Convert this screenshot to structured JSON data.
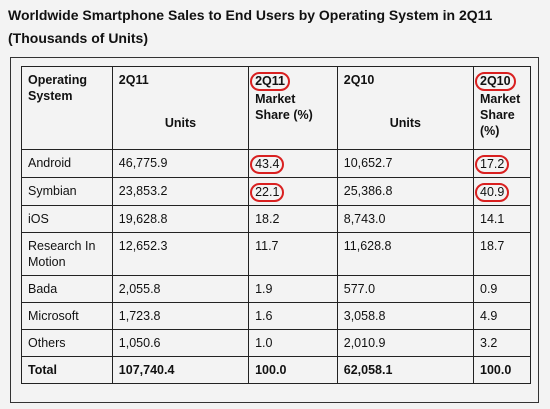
{
  "title_line1": "Worldwide Smartphone Sales to End Users by Operating System in 2Q11",
  "title_line2": "(Thousands of Units)",
  "header": {
    "col1": "Operating System",
    "col2_top": "2Q11",
    "col2_units": "Units",
    "col3_top": "2Q11",
    "col3_sub": "Market Share (%)",
    "col4_top": "2Q10",
    "col4_units": "Units",
    "col5_top": "2Q10",
    "col5_sub": "Market Share (%)"
  },
  "rows": [
    {
      "os": "Android",
      "units_2q11": "46,775.9",
      "share_2q11": "43.4",
      "units_2q10": "10,652.7",
      "share_2q10": "17.2"
    },
    {
      "os": "Symbian",
      "units_2q11": "23,853.2",
      "share_2q11": "22.1",
      "units_2q10": "25,386.8",
      "share_2q10": "40.9"
    },
    {
      "os": "iOS",
      "units_2q11": "19,628.8",
      "share_2q11": "18.2",
      "units_2q10": "8,743.0",
      "share_2q10": "14.1"
    },
    {
      "os": "Research In Motion",
      "units_2q11": "12,652.3",
      "share_2q11": "11.7",
      "units_2q10": "11,628.8",
      "share_2q10": "18.7"
    },
    {
      "os": "Bada",
      "units_2q11": "2,055.8",
      "share_2q11": "1.9",
      "units_2q10": "577.0",
      "share_2q10": "0.9"
    },
    {
      "os": "Microsoft",
      "units_2q11": "1,723.8",
      "share_2q11": "1.6",
      "units_2q10": "3,058.8",
      "share_2q10": "4.9"
    },
    {
      "os": "Others",
      "units_2q11": "1,050.6",
      "share_2q11": "1.0",
      "units_2q10": "2,010.9",
      "share_2q10": "3.2"
    }
  ],
  "total": {
    "os": "Total",
    "units_2q11": "107,740.4",
    "share_2q11": "100.0",
    "units_2q10": "62,058.1",
    "share_2q10": "100.0"
  },
  "highlight_color": "#d92020"
}
